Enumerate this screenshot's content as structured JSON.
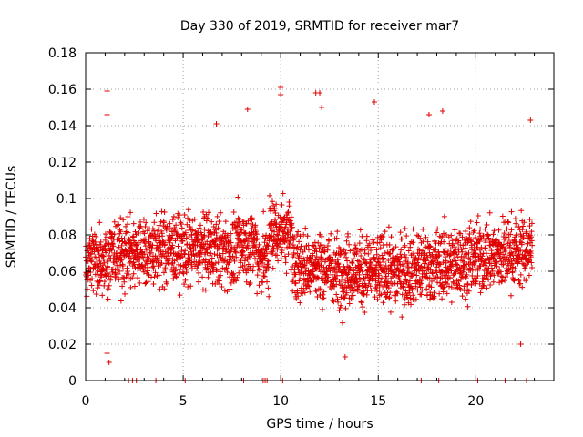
{
  "chart_data": {
    "type": "scatter",
    "title": "Day 330 of 2019, SRMTID for receiver mar7",
    "xlabel": "GPS time / hours",
    "ylabel": "SRMTID / TECUs",
    "xlim": [
      0,
      24
    ],
    "ylim": [
      0,
      0.18
    ],
    "xticks": [
      0,
      5,
      10,
      15,
      20
    ],
    "xtick_labels": [
      "0",
      "5",
      "10",
      "15",
      "20"
    ],
    "yticks": [
      0,
      0.02,
      0.04,
      0.06,
      0.08,
      0.1,
      0.12,
      0.14,
      0.16,
      0.18
    ],
    "ytick_labels": [
      "0",
      "0.02",
      "0.04",
      "0.06",
      "0.08",
      "0.1",
      "0.12",
      "0.14",
      "0.16",
      "0.18"
    ],
    "grid": true,
    "marker": "+",
    "marker_color": "#e00000",
    "x_range_of_data": [
      0,
      22.9
    ],
    "typical_value_range": [
      0.02,
      0.12
    ],
    "notable_points": [
      {
        "x": 1.1,
        "y": 0.159
      },
      {
        "x": 1.1,
        "y": 0.146
      },
      {
        "x": 10.0,
        "y": 0.161
      },
      {
        "x": 10.0,
        "y": 0.157
      },
      {
        "x": 11.8,
        "y": 0.158
      },
      {
        "x": 12.0,
        "y": 0.158
      },
      {
        "x": 14.8,
        "y": 0.153
      },
      {
        "x": 8.3,
        "y": 0.149
      },
      {
        "x": 18.3,
        "y": 0.148
      },
      {
        "x": 17.6,
        "y": 0.146
      },
      {
        "x": 22.8,
        "y": 0.143
      },
      {
        "x": 6.7,
        "y": 0.141
      },
      {
        "x": 12.1,
        "y": 0.15
      },
      {
        "x": 1.2,
        "y": 0.01
      },
      {
        "x": 1.1,
        "y": 0.015
      },
      {
        "x": 13.3,
        "y": 0.013
      },
      {
        "x": 22.3,
        "y": 0.02
      }
    ],
    "zero_points_x": [
      2.2,
      2.4,
      2.6,
      3.6,
      5.1,
      8.1,
      9.1,
      9.2,
      9.3,
      10.1,
      17.2,
      18.1,
      20.1,
      21.5,
      22.6
    ]
  }
}
